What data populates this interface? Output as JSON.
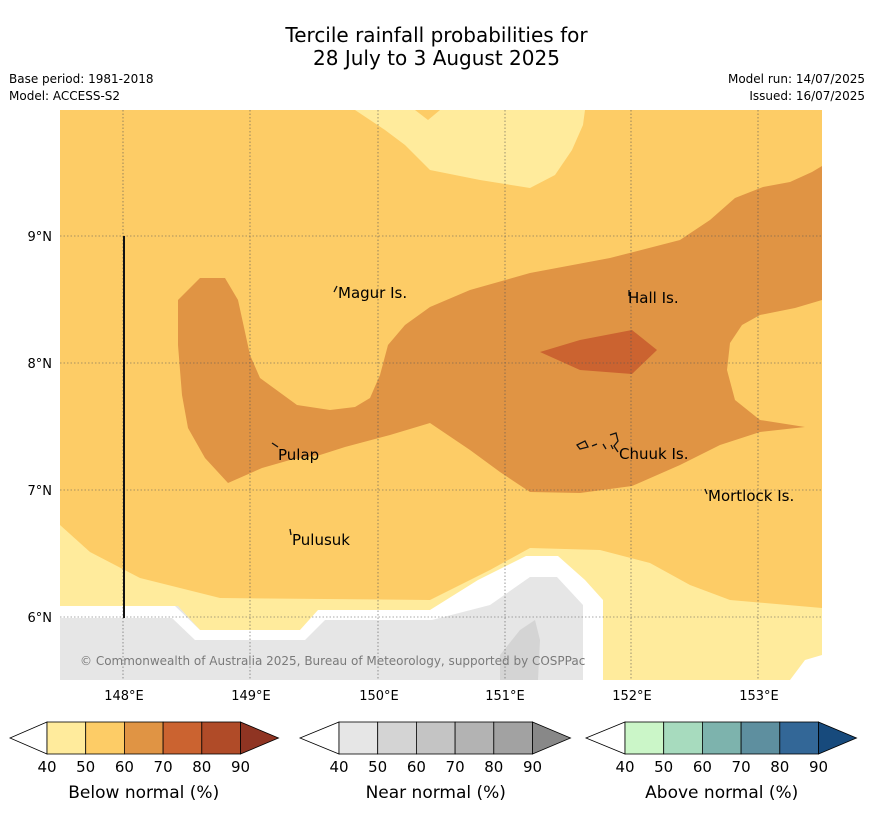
{
  "title": {
    "line1": "Tercile rainfall probabilities for",
    "line2": "28 July to 3 August 2025"
  },
  "meta_left": {
    "base_period": "Base period: 1981-2018",
    "model": "Model: ACCESS-S2"
  },
  "meta_right": {
    "model_run": "Model run: 14/07/2025",
    "issued": "Issued: 16/07/2025"
  },
  "map": {
    "lon_labels": [
      "148°E",
      "149°E",
      "150°E",
      "151°E",
      "152°E",
      "153°E"
    ],
    "lat_labels": [
      "9°N",
      "8°N",
      "7°N",
      "6°N"
    ],
    "places": [
      "Magur Is.",
      "Hall Is.",
      "Pulap",
      "Chuuk Is.",
      "Mortlock Is.",
      "Pulusuk"
    ],
    "copyright": "© Commonwealth of Australia 2025, Bureau of Meteorology, supported by COSPPac"
  },
  "colorbars": [
    {
      "label": "Below normal (%)",
      "ticks": [
        "40",
        "50",
        "60",
        "70",
        "80",
        "90"
      ],
      "colors": [
        "#ffeb9c",
        "#fdcc66",
        "#e09444",
        "#cb6330",
        "#b04b28",
        "#8f3422"
      ]
    },
    {
      "label": "Near normal (%)",
      "ticks": [
        "40",
        "50",
        "60",
        "70",
        "80",
        "90"
      ],
      "colors": [
        "#e6e6e6",
        "#d4d4d4",
        "#c4c4c4",
        "#b3b3b3",
        "#a2a2a2",
        "#888888"
      ]
    },
    {
      "label": "Above normal (%)",
      "ticks": [
        "40",
        "50",
        "60",
        "70",
        "80",
        "90"
      ],
      "colors": [
        "#cbf6c8",
        "#a7dbbe",
        "#7db3ad",
        "#5e8f9f",
        "#336797",
        "#174a7c"
      ]
    }
  ],
  "fill_colors": {
    "below_40_50": "#ffeb9c",
    "below_50_60": "#fdcc66",
    "below_60_70": "#e09444",
    "below_70_80": "#cb6330",
    "near_40_50": "#e6e6e6",
    "near_50_60": "#d4d4d4"
  }
}
